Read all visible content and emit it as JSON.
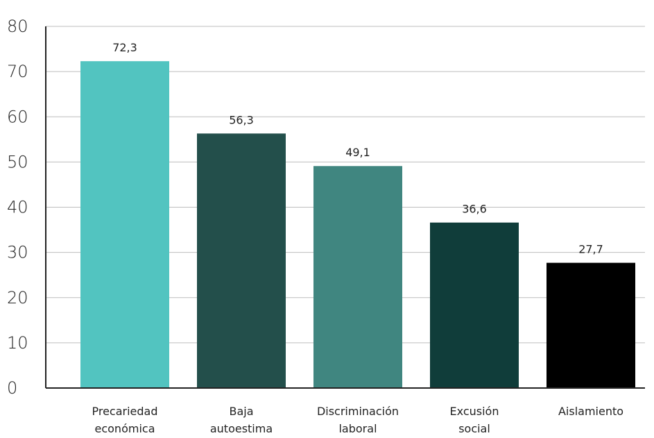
{
  "chart_data": {
    "type": "bar",
    "categories": [
      [
        "Precariedad",
        "económica"
      ],
      [
        "Baja",
        "autoestima"
      ],
      [
        "Discriminación",
        "laboral"
      ],
      [
        "Excusión",
        "social"
      ],
      [
        "Aislamiento"
      ]
    ],
    "values": [
      72.3,
      56.3,
      49.1,
      36.6,
      27.7
    ],
    "value_labels": [
      "72,3",
      "56,3",
      "49,1",
      "36,6",
      "27,7"
    ],
    "bar_colors": [
      "#52c4c0",
      "#234f4b",
      "#408680",
      "#103d3a",
      "#000000"
    ],
    "ylim": [
      0,
      80
    ],
    "yticks": [
      0,
      10,
      20,
      30,
      40,
      50,
      60,
      70,
      80
    ],
    "grid": true,
    "title": "",
    "xlabel": "",
    "ylabel": ""
  }
}
